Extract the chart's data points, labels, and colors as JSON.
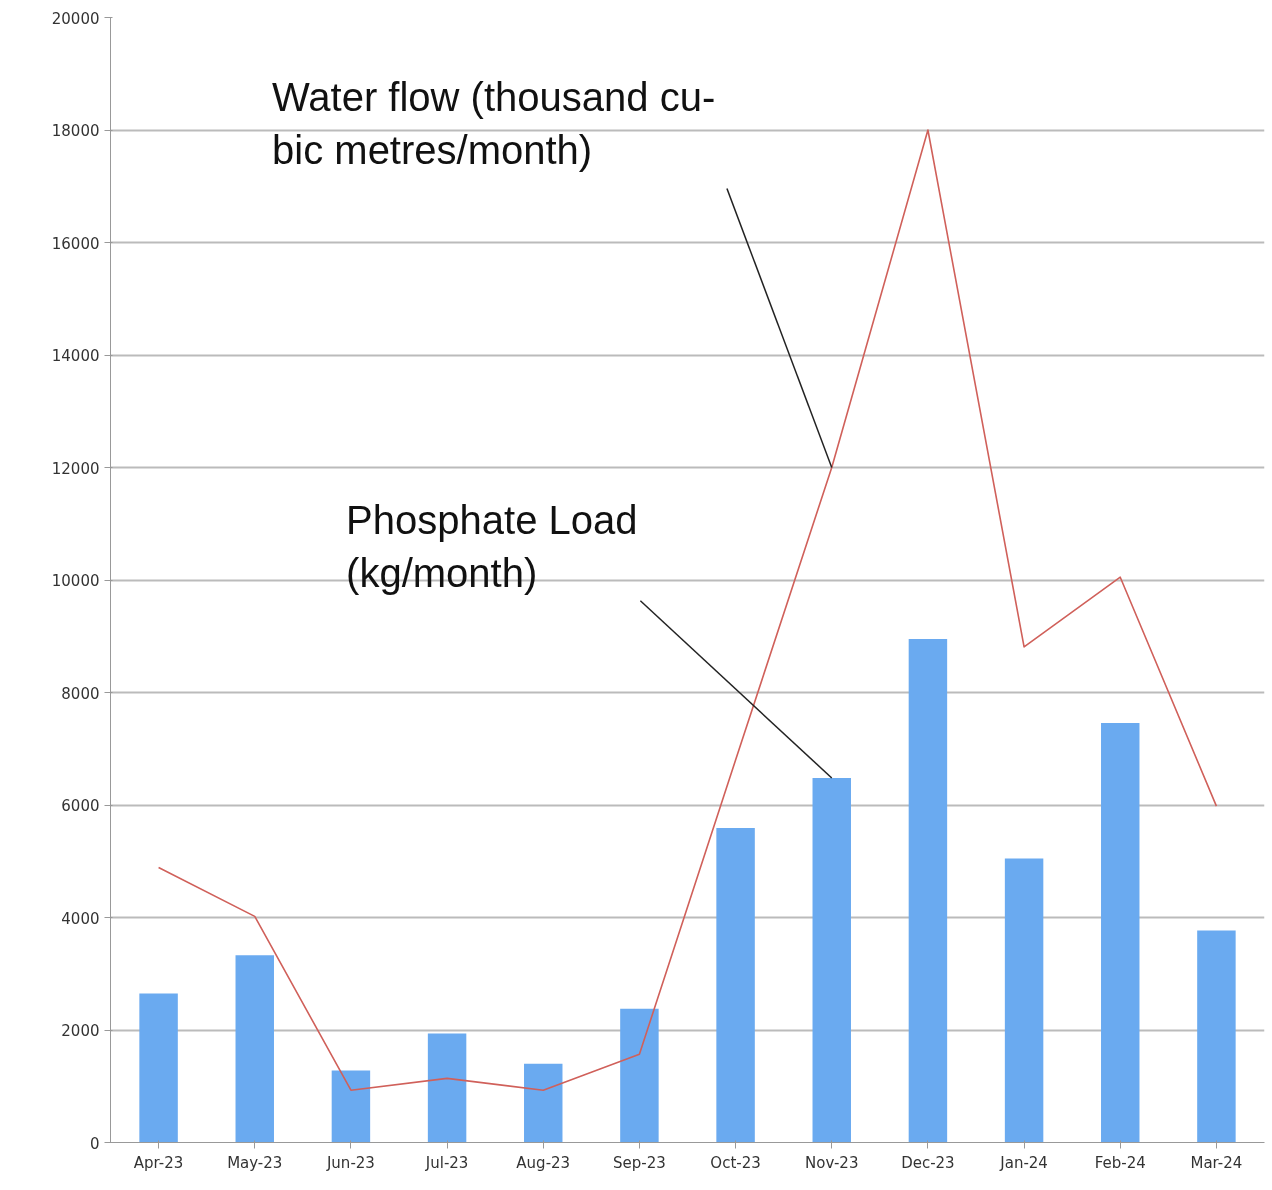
{
  "chart_data": {
    "type": "bar",
    "categories": [
      "Apr-23",
      "May-23",
      "Jun-23",
      "Jul-23",
      "Aug-23",
      "Sep-23",
      "Oct-23",
      "Nov-23",
      "Dec-23",
      "Jan-24",
      "Feb-24",
      "Mar-24"
    ],
    "series": [
      {
        "color": "#6aaaf0",
        "values": [
          2650,
          3330,
          1280,
          1940,
          1400,
          2380,
          5590,
          6480,
          8950,
          5050,
          7460,
          3770
        ]
      },
      {
        "type": "line",
        "color": "#d0605a",
        "values": [
          4890,
          4020,
          930,
          1140,
          930,
          1570,
          6800,
          12000,
          18000,
          8810,
          10050,
          5980
        ]
      }
    ],
    "ylim": [
      0,
      20000
    ],
    "yticks": [
      0,
      2000,
      4000,
      6000,
      8000,
      10000,
      12000,
      14000,
      16000,
      18000,
      20000
    ],
    "grid": "y",
    "annotations": [
      {
        "text": "Water flow (thousand cu-\nbic metres/month)",
        "x": "Nov-23",
        "y": 12000
      },
      {
        "text": "Phosphate Load\n(kg/month)",
        "x": "Nov-23",
        "y": 6480
      }
    ]
  }
}
